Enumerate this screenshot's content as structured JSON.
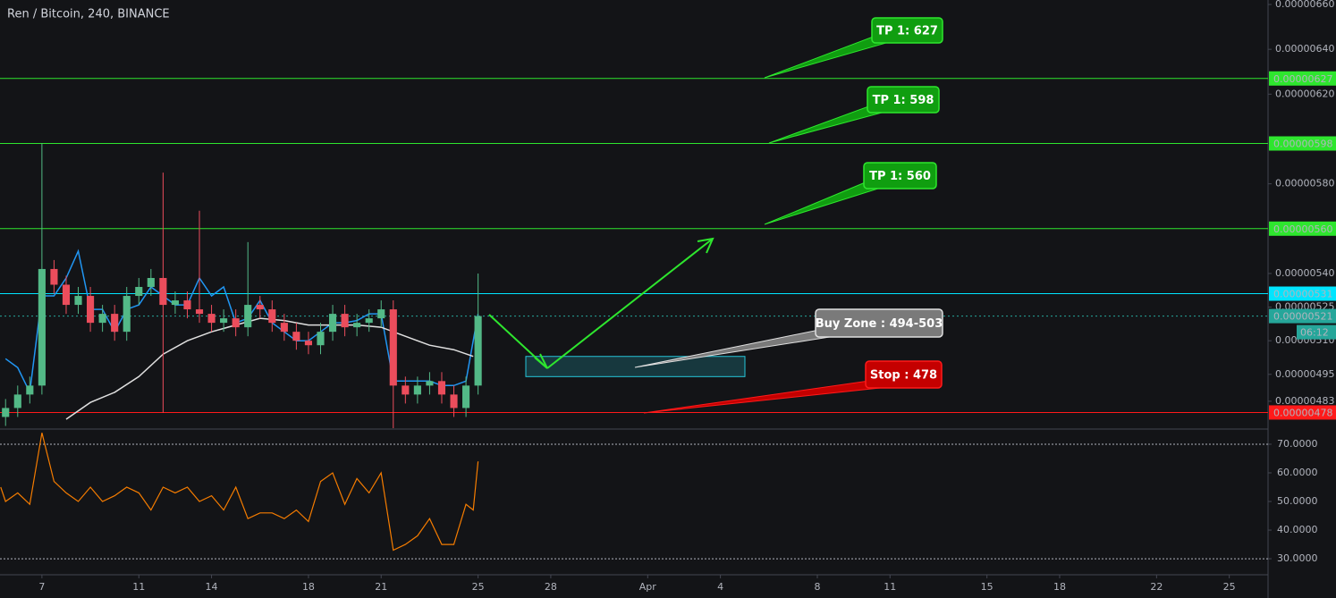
{
  "header": {
    "title": "Ren / Bitcoin, 240, BINANCE"
  },
  "chart_data": [
    {
      "type": "candlestick",
      "x": [
        -1.5,
        -1,
        -0.5,
        0,
        0.5,
        1,
        1.5,
        2,
        2.5,
        3,
        3.5,
        4,
        4.5,
        5,
        5.5,
        6,
        6.5,
        7,
        7.5,
        8,
        8.5,
        9,
        9.5,
        10,
        10.5,
        11,
        11.5,
        12,
        12.5,
        13,
        13.5,
        14,
        14.5,
        15,
        15.5,
        16,
        16.5,
        17,
        17.5,
        18
      ],
      "open": [
        4.76e-07,
        4.8e-07,
        4.86e-07,
        4.9e-07,
        5.42e-07,
        5.35e-07,
        5.26e-07,
        5.3e-07,
        5.18e-07,
        5.22e-07,
        5.14e-07,
        5.3e-07,
        5.34e-07,
        5.38e-07,
        5.26e-07,
        5.28e-07,
        5.24e-07,
        5.22e-07,
        5.18e-07,
        5.2e-07,
        5.16e-07,
        5.26e-07,
        5.24e-07,
        5.18e-07,
        5.14e-07,
        5.1e-07,
        5.08e-07,
        5.14e-07,
        5.22e-07,
        5.16e-07,
        5.18e-07,
        5.2e-07,
        5.24e-07,
        4.9e-07,
        4.86e-07,
        4.9e-07,
        4.92e-07,
        4.86e-07,
        4.8e-07,
        4.9e-07
      ],
      "high": [
        4.84e-07,
        4.9e-07,
        4.94e-07,
        5.98e-07,
        5.46e-07,
        5.39e-07,
        5.34e-07,
        5.34e-07,
        5.26e-07,
        5.26e-07,
        5.34e-07,
        5.38e-07,
        5.42e-07,
        5.85e-07,
        5.32e-07,
        5.32e-07,
        5.68e-07,
        5.26e-07,
        5.24e-07,
        5.24e-07,
        5.54e-07,
        5.3e-07,
        5.28e-07,
        5.22e-07,
        5.18e-07,
        5.14e-07,
        5.18e-07,
        5.26e-07,
        5.26e-07,
        5.22e-07,
        5.24e-07,
        5.28e-07,
        5.28e-07,
        4.94e-07,
        4.94e-07,
        4.96e-07,
        4.96e-07,
        4.9e-07,
        4.94e-07,
        5.4e-07
      ],
      "low": [
        4.72e-07,
        4.76e-07,
        4.82e-07,
        4.86e-07,
        5.31e-07,
        5.22e-07,
        5.22e-07,
        5.14e-07,
        5.14e-07,
        5.1e-07,
        5.1e-07,
        5.26e-07,
        5.3e-07,
        4.78e-07,
        5.22e-07,
        5.2e-07,
        5.18e-07,
        5.14e-07,
        5.14e-07,
        5.12e-07,
        5.12e-07,
        5.2e-07,
        5.14e-07,
        5.1e-07,
        5.06e-07,
        5.04e-07,
        5.04e-07,
        5.1e-07,
        5.12e-07,
        5.12e-07,
        5.14e-07,
        5.16e-07,
        4.71e-07,
        4.82e-07,
        4.82e-07,
        4.86e-07,
        4.82e-07,
        4.76e-07,
        4.76e-07,
        4.86e-07
      ],
      "close": [
        4.8e-07,
        4.86e-07,
        4.9e-07,
        5.42e-07,
        5.35e-07,
        5.26e-07,
        5.3e-07,
        5.18e-07,
        5.22e-07,
        5.14e-07,
        5.3e-07,
        5.34e-07,
        5.38e-07,
        5.26e-07,
        5.28e-07,
        5.24e-07,
        5.22e-07,
        5.18e-07,
        5.2e-07,
        5.16e-07,
        5.26e-07,
        5.24e-07,
        5.18e-07,
        5.14e-07,
        5.1e-07,
        5.08e-07,
        5.14e-07,
        5.22e-07,
        5.16e-07,
        5.18e-07,
        5.2e-07,
        5.24e-07,
        4.9e-07,
        4.86e-07,
        4.9e-07,
        4.92e-07,
        4.86e-07,
        4.8e-07,
        4.9e-07,
        5.21e-07
      ],
      "up_color": "#53b987",
      "down_color": "#eb4d5c",
      "overlays": [
        {
          "color": "#2196f3",
          "x": [
            -1.5,
            -1,
            -0.5,
            0,
            0.5,
            1,
            1.5,
            2,
            2.5,
            3,
            3.5,
            4,
            4.5,
            5,
            5.5,
            6,
            6.5,
            7,
            7.5,
            8,
            8.5,
            9,
            9.5,
            10,
            10.5,
            11,
            11.5,
            12,
            12.5,
            13,
            13.5,
            14,
            14.5,
            15,
            15.5,
            16,
            16.5,
            17,
            17.5,
            18
          ],
          "values": [
            5.02e-07,
            4.98e-07,
            4.87e-07,
            5.3e-07,
            5.3e-07,
            5.38e-07,
            5.5e-07,
            5.24e-07,
            5.24e-07,
            5.14e-07,
            5.24e-07,
            5.26e-07,
            5.34e-07,
            5.3e-07,
            5.26e-07,
            5.26e-07,
            5.38e-07,
            5.3e-07,
            5.34e-07,
            5.18e-07,
            5.2e-07,
            5.28e-07,
            5.18e-07,
            5.14e-07,
            5.1e-07,
            5.1e-07,
            5.14e-07,
            5.18e-07,
            5.18e-07,
            5.19e-07,
            5.22e-07,
            5.22e-07,
            4.92e-07,
            4.92e-07,
            4.92e-07,
            4.92e-07,
            4.9e-07,
            4.9e-07,
            4.92e-07,
            5.22e-07
          ]
        },
        {
          "color": "#e0e0e0",
          "x": [
            1,
            2,
            3,
            4,
            5,
            6,
            7,
            8,
            9,
            10,
            11,
            12,
            13,
            14,
            15,
            16,
            17,
            17.8
          ],
          "values": [
            4.75e-07,
            4.825e-07,
            4.87e-07,
            4.94e-07,
            5.04e-07,
            5.1e-07,
            5.14e-07,
            5.17e-07,
            5.2e-07,
            5.19e-07,
            5.17e-07,
            5.17e-07,
            5.17e-07,
            5.16e-07,
            5.12e-07,
            5.08e-07,
            5.06e-07,
            5.03e-07
          ]
        }
      ],
      "xlim": [
        -1.73,
        50.6
      ],
      "xticks": [
        {
          "value": 0,
          "label": "7"
        },
        {
          "value": 4,
          "label": "11"
        },
        {
          "value": 7,
          "label": "14"
        },
        {
          "value": 11,
          "label": "18"
        },
        {
          "value": 14,
          "label": "21"
        },
        {
          "value": 18,
          "label": "25"
        },
        {
          "value": 21,
          "label": "28"
        },
        {
          "value": 25,
          "label": "Apr"
        },
        {
          "value": 28,
          "label": "4"
        },
        {
          "value": 32,
          "label": "8"
        },
        {
          "value": 35,
          "label": "11"
        },
        {
          "value": 39,
          "label": "15"
        },
        {
          "value": 42,
          "label": "18"
        },
        {
          "value": 46,
          "label": "22"
        },
        {
          "value": 49,
          "label": "25"
        }
      ],
      "ylim": [
        4.706e-07,
        6.62e-07
      ],
      "yticks": [
        {
          "value": 6.6e-07,
          "label": "0.00000660"
        },
        {
          "value": 6.4e-07,
          "label": "0.00000640"
        },
        {
          "value": 6.2e-07,
          "label": "0.00000620"
        },
        {
          "value": 5.8e-07,
          "label": "0.00000580"
        },
        {
          "value": 5.4e-07,
          "label": "0.00000540"
        },
        {
          "value": 5.25e-07,
          "label": "0.00000525"
        },
        {
          "value": 5.1e-07,
          "label": "0.00000510"
        },
        {
          "value": 4.95e-07,
          "label": "0.00000495"
        },
        {
          "value": 4.83e-07,
          "label": "0.00000483"
        }
      ],
      "levels": [
        {
          "value": 6.27e-07,
          "label": "0.00000627",
          "color": "#2ee62e",
          "text_color": "#131417",
          "dashed": false
        },
        {
          "value": 5.98e-07,
          "label": "0.00000598",
          "color": "#2ee62e",
          "text_color": "#131417",
          "dashed": false
        },
        {
          "value": 5.6e-07,
          "label": "0.00000560",
          "color": "#2ee62e",
          "text_color": "#131417",
          "dashed": false
        },
        {
          "value": 5.31e-07,
          "label": "0.00000531",
          "color": "#00e5ff",
          "text_color": "#131417",
          "dashed": false
        },
        {
          "value": 5.21e-07,
          "label": "0.00000521",
          "color": "#26a69a",
          "text_color": "#ffffff",
          "dashed": true
        },
        {
          "value": 4.78e-07,
          "label": "0.00000478",
          "color": "#ff1a1a",
          "text_color": "#ffffff",
          "dashed": false
        }
      ],
      "countdown": "06:12",
      "zone": {
        "from": 4.94e-07,
        "to": 5.03e-07,
        "color": "#26c6da"
      },
      "annotations": [
        {
          "text": "TP 1: 627",
          "color": "#109e10",
          "border": "#2ee62e"
        },
        {
          "text": "TP 1: 598",
          "color": "#109e10",
          "border": "#2ee62e"
        },
        {
          "text": "TP 1: 560",
          "color": "#109e10",
          "border": "#2ee62e"
        },
        {
          "text": "Buy Zone : 494-503",
          "color": "#7a7a7a",
          "border": "#e0e0e0"
        },
        {
          "text": "Stop : 478",
          "color": "#c40000",
          "border": "#ff1a1a"
        }
      ]
    },
    {
      "type": "line",
      "x": [
        -1.7,
        -1.5,
        -1,
        -0.5,
        0,
        0.5,
        1,
        1.5,
        2,
        2.5,
        3,
        3.5,
        4,
        4.5,
        5,
        5.5,
        6,
        6.5,
        7,
        7.5,
        8,
        8.5,
        9,
        9.5,
        10,
        10.5,
        11,
        11.5,
        12,
        12.5,
        13,
        13.5,
        14,
        14.5,
        15,
        15.5,
        16,
        16.5,
        17,
        17.5,
        17.8,
        18
      ],
      "values": [
        55,
        50,
        53,
        49,
        74,
        57,
        53,
        50,
        55,
        50,
        52,
        55,
        53,
        47,
        55,
        53,
        55,
        50,
        52,
        47,
        55,
        44,
        46,
        46,
        44,
        47,
        43,
        57,
        60,
        49,
        58,
        53,
        60,
        33,
        35,
        38,
        44,
        35,
        35,
        49,
        47,
        64
      ],
      "color": "#f57c00",
      "ylim": [
        24.4,
        75.3
      ],
      "yticks": [
        {
          "value": 70,
          "label": "70.0000"
        },
        {
          "value": 60,
          "label": "60.0000"
        },
        {
          "value": 50,
          "label": "50.0000"
        },
        {
          "value": 40,
          "label": "40.0000"
        },
        {
          "value": 30,
          "label": "30.0000"
        }
      ],
      "hlines": [
        70,
        30
      ]
    }
  ]
}
